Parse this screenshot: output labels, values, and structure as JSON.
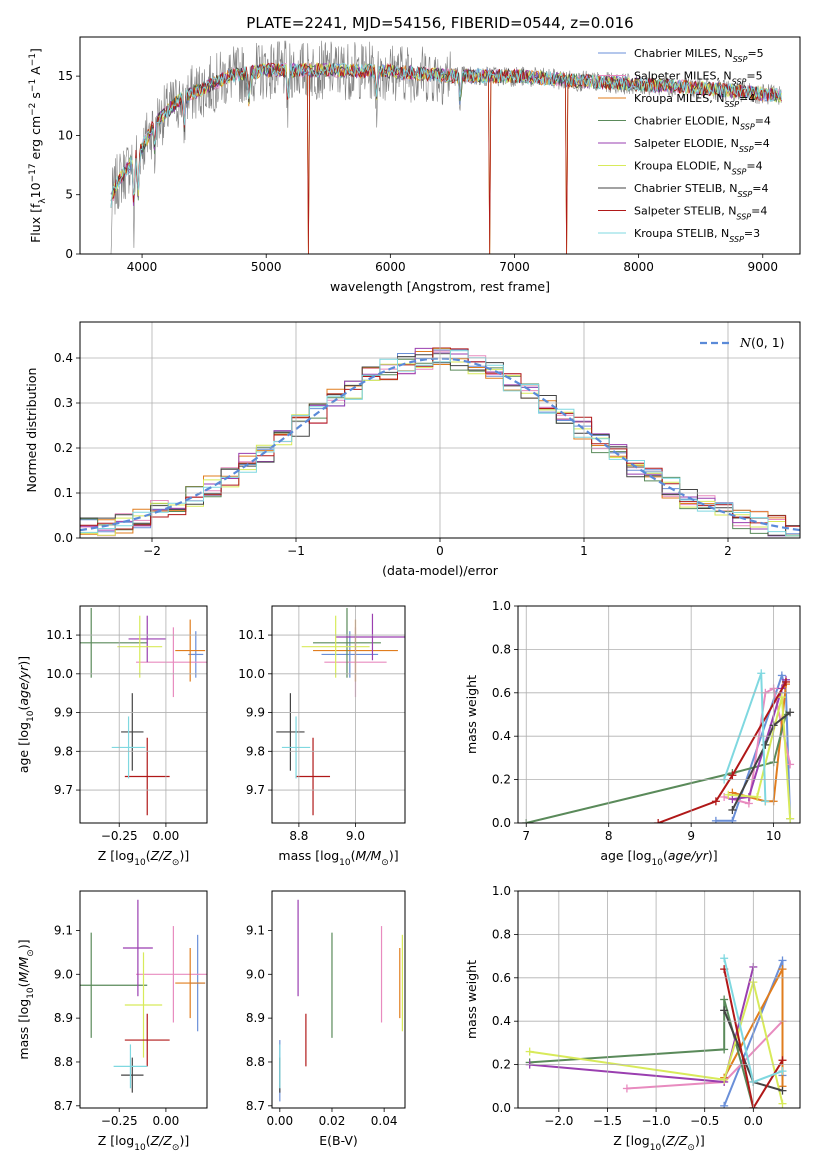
{
  "title": "PLATE=2241, MJD=54156, FIBERID=0544, z=0.016",
  "colors": [
    "#6a8fd8",
    "#e88bbf",
    "#e07d1e",
    "#5a8a5a",
    "#9a3fb0",
    "#d8ea5a",
    "#444444",
    "#b01818",
    "#7fd8e0"
  ],
  "legend": [
    "Chabrier MILES, N_SSP=5",
    "Salpeter MILES, N_SSP=5",
    "Kroupa MILES, N_SSP=4",
    "Chabrier ELODIE, N_SSP=4",
    "Salpeter ELODIE, N_SSP=4",
    "Kroupa ELODIE, N_SSP=4",
    "Chabrier STELIB, N_SSP=4",
    "Salpeter STELIB, N_SSP=4",
    "Kroupa STELIB, N_SSP=3"
  ],
  "chart_data": [
    {
      "id": "spectrum",
      "type": "line",
      "xlabel": "wavelength [Angstrom, rest frame]",
      "ylabel": "Flux [f_λ10^-17 erg cm^-2 s^-1 A^-1]",
      "xlim": [
        3500,
        9300
      ],
      "ylim": [
        0,
        18.3
      ],
      "xticks": [
        4000,
        5000,
        6000,
        7000,
        8000,
        9000
      ],
      "yticks": [
        0,
        5,
        10,
        15
      ],
      "continuum": [
        [
          3750,
          4.5
        ],
        [
          3800,
          6
        ],
        [
          3900,
          7.5
        ],
        [
          4000,
          9
        ],
        [
          4100,
          11
        ],
        [
          4300,
          13
        ],
        [
          4500,
          14
        ],
        [
          4700,
          15
        ],
        [
          5000,
          15.5
        ],
        [
          5500,
          15.5
        ],
        [
          6000,
          15.4
        ],
        [
          6500,
          15
        ],
        [
          7000,
          15
        ],
        [
          7500,
          14.6
        ],
        [
          8000,
          14.3
        ],
        [
          8500,
          14
        ],
        [
          9000,
          13.5
        ],
        [
          9300,
          13.2
        ]
      ]
    },
    {
      "id": "residuals",
      "type": "step",
      "xlabel": "(data-model)/error",
      "ylabel": "Normed distribution",
      "xlim": [
        -2.5,
        2.5
      ],
      "ylim": [
        0,
        0.48
      ],
      "xticks": [
        -2,
        -1,
        0,
        1,
        2
      ],
      "yticks": [
        0.0,
        0.1,
        0.2,
        0.3,
        0.4
      ],
      "legend": "N(0,1)",
      "gaussian": {
        "mu": 0,
        "sigma": 1
      }
    },
    {
      "id": "age_vs_Z",
      "type": "errorbar",
      "xlabel": "Z [log10(Z/Z⊙)]",
      "ylabel": "age  [log10(age/yr)]",
      "xlim": [
        -0.46,
        0.22
      ],
      "ylim": [
        9.615,
        10.175
      ],
      "xticks": [
        -0.25,
        0.0
      ],
      "yticks": [
        9.7,
        9.8,
        9.9,
        10.0,
        10.1
      ],
      "points": [
        {
          "x": 0.16,
          "y": 10.05,
          "xe": 0.04,
          "ye": 0.06
        },
        {
          "x": 0.04,
          "y": 10.03,
          "xe": 0.2,
          "ye": 0.09
        },
        {
          "x": 0.13,
          "y": 10.06,
          "xe": 0.08,
          "ye": 0.08
        },
        {
          "x": -0.4,
          "y": 10.08,
          "xe": 0.3,
          "ye": 0.09
        },
        {
          "x": -0.1,
          "y": 10.09,
          "xe": 0.1,
          "ye": 0.06
        },
        {
          "x": -0.14,
          "y": 10.07,
          "xe": 0.12,
          "ye": 0.08
        },
        {
          "x": -0.18,
          "y": 9.85,
          "xe": 0.06,
          "ye": 0.1
        },
        {
          "x": -0.1,
          "y": 9.735,
          "xe": 0.12,
          "ye": 0.1
        },
        {
          "x": -0.2,
          "y": 9.81,
          "xe": 0.09,
          "ye": 0.08
        }
      ]
    },
    {
      "id": "age_vs_mass",
      "type": "errorbar",
      "xlabel": "mass [log10(M/M⊙)]",
      "ylabel": "",
      "xlim": [
        8.705,
        9.175
      ],
      "ylim": [
        9.615,
        10.175
      ],
      "xticks": [
        8.8,
        9.0
      ],
      "yticks": [
        9.7,
        9.8,
        9.9,
        10.0,
        10.1
      ],
      "points": [
        {
          "x": 8.98,
          "y": 10.05,
          "xe": 0.1,
          "ye": 0.06
        },
        {
          "x": 9.0,
          "y": 10.03,
          "xe": 0.11,
          "ye": 0.09
        },
        {
          "x": 9.0,
          "y": 10.06,
          "xe": 0.15,
          "ye": 0.08
        },
        {
          "x": 8.97,
          "y": 10.08,
          "xe": 0.12,
          "ye": 0.09
        },
        {
          "x": 9.06,
          "y": 10.095,
          "xe": 0.13,
          "ye": 0.06
        },
        {
          "x": 8.93,
          "y": 10.07,
          "xe": 0.12,
          "ye": 0.08
        },
        {
          "x": 8.77,
          "y": 9.85,
          "xe": 0.05,
          "ye": 0.1
        },
        {
          "x": 8.85,
          "y": 9.735,
          "xe": 0.06,
          "ye": 0.1
        },
        {
          "x": 8.79,
          "y": 9.81,
          "xe": 0.05,
          "ye": 0.08
        }
      ]
    },
    {
      "id": "massweight_vs_age",
      "type": "line",
      "xlabel": "age  [log10(age/yr)]",
      "ylabel": "mass weight",
      "xlim": [
        6.9,
        10.32
      ],
      "ylim": [
        0,
        1.0
      ],
      "xticks": [
        7,
        8,
        9,
        10
      ],
      "yticks": [
        0.0,
        0.2,
        0.4,
        0.6,
        0.8,
        1.0
      ],
      "series": [
        {
          "x": [
            9.3,
            9.5,
            10.1,
            10.15,
            10.2
          ],
          "y": [
            0.01,
            0.01,
            0.68,
            0.6,
            0.02
          ]
        },
        {
          "x": [
            9.4,
            9.7,
            9.9,
            10.0,
            10.2
          ],
          "y": [
            0.12,
            0.09,
            0.6,
            0.62,
            0.27
          ]
        },
        {
          "x": [
            9.5,
            9.9,
            10.0,
            10.15
          ],
          "y": [
            0.14,
            0.1,
            0.1,
            0.64
          ]
        },
        {
          "x": [
            7.0,
            9.5,
            10.0,
            10.15
          ],
          "y": [
            0.0,
            0.23,
            0.28,
            0.5
          ]
        },
        {
          "x": [
            9.5,
            9.7,
            10.1,
            10.15
          ],
          "y": [
            0.11,
            0.12,
            0.62,
            0.66
          ]
        },
        {
          "x": [
            9.45,
            9.8,
            10.1,
            10.2
          ],
          "y": [
            0.13,
            0.12,
            0.58,
            0.02
          ]
        },
        {
          "x": [
            9.5,
            9.9,
            10.0,
            10.2
          ],
          "y": [
            0.06,
            0.36,
            0.45,
            0.51
          ]
        },
        {
          "x": [
            8.6,
            9.3,
            9.5,
            10.15
          ],
          "y": [
            0.0,
            0.1,
            0.22,
            0.65
          ]
        },
        {
          "x": [
            9.4,
            9.85,
            9.9
          ],
          "y": [
            0.2,
            0.69,
            0.1
          ]
        }
      ]
    },
    {
      "id": "mass_vs_Z",
      "type": "errorbar",
      "xlabel": "Z [log10(Z/Z⊙)]",
      "ylabel": "mass [log10(M/M⊙)]",
      "xlim": [
        -0.46,
        0.22
      ],
      "ylim": [
        8.695,
        9.19
      ],
      "xticks": [
        -0.25,
        0.0
      ],
      "yticks": [
        8.7,
        8.8,
        8.9,
        9.0,
        9.1
      ],
      "points": [
        {
          "x": 0.17,
          "y": 8.98,
          "xe": 0.04,
          "ye": 0.11
        },
        {
          "x": 0.04,
          "y": 9.0,
          "xe": 0.2,
          "ye": 0.11
        },
        {
          "x": 0.13,
          "y": 8.98,
          "xe": 0.08,
          "ye": 0.08
        },
        {
          "x": -0.4,
          "y": 8.975,
          "xe": 0.3,
          "ye": 0.12
        },
        {
          "x": -0.15,
          "y": 9.06,
          "xe": 0.08,
          "ye": 0.11
        },
        {
          "x": -0.12,
          "y": 8.93,
          "xe": 0.1,
          "ye": 0.12
        },
        {
          "x": -0.18,
          "y": 8.77,
          "xe": 0.06,
          "ye": 0.04
        },
        {
          "x": -0.1,
          "y": 8.85,
          "xe": 0.12,
          "ye": 0.06
        },
        {
          "x": -0.19,
          "y": 8.79,
          "xe": 0.09,
          "ye": 0.05
        }
      ]
    },
    {
      "id": "mass_vs_EBV",
      "type": "errorbar",
      "xlabel": "E(B-V)",
      "ylabel": "",
      "xlim": [
        -0.003,
        0.048
      ],
      "ylim": [
        8.695,
        9.19
      ],
      "xticks": [
        0.0,
        0.02,
        0.04
      ],
      "yticks": [
        8.7,
        8.8,
        8.9,
        9.0,
        9.1
      ],
      "points": [
        {
          "x": 0.0,
          "y": 8.78,
          "xe": 0,
          "ye": 0.07
        },
        {
          "x": 0.039,
          "y": 9.0,
          "xe": 0,
          "ye": 0.11
        },
        {
          "x": 0.046,
          "y": 8.98,
          "xe": 0,
          "ye": 0.08
        },
        {
          "x": 0.02,
          "y": 8.975,
          "xe": 0,
          "ye": 0.12
        },
        {
          "x": 0.007,
          "y": 9.06,
          "xe": 0,
          "ye": 0.11
        },
        {
          "x": 0.047,
          "y": 8.98,
          "xe": 0,
          "ye": 0.11
        },
        {
          "x": 0.0,
          "y": 8.77,
          "xe": 0,
          "ye": 0.04
        },
        {
          "x": 0.01,
          "y": 8.85,
          "xe": 0,
          "ye": 0.06
        },
        {
          "x": 0.0,
          "y": 8.79,
          "xe": 0,
          "ye": 0.05
        }
      ]
    },
    {
      "id": "massweight_vs_Z",
      "type": "line",
      "xlabel": "Z [log10(Z/Z⊙)]",
      "ylabel": "mass weight",
      "xlim": [
        -2.42,
        0.48
      ],
      "ylim": [
        0,
        1.0
      ],
      "xticks": [
        -2.0,
        -1.5,
        -1.0,
        -0.5,
        0.0
      ],
      "yticks": [
        0.0,
        0.2,
        0.4,
        0.6,
        0.8,
        1.0
      ],
      "series": [
        {
          "x": [
            -0.3,
            0.3,
            0.3
          ],
          "y": [
            0.01,
            0.68,
            0.15
          ]
        },
        {
          "x": [
            -1.3,
            -0.3,
            0.3
          ],
          "y": [
            0.09,
            0.12,
            0.4
          ]
        },
        {
          "x": [
            -0.3,
            0.3,
            0.3
          ],
          "y": [
            0.14,
            0.64,
            0.1
          ]
        },
        {
          "x": [
            -2.3,
            -0.3,
            -0.3,
            0.0
          ],
          "y": [
            0.21,
            0.27,
            0.5,
            0.0
          ]
        },
        {
          "x": [
            -2.3,
            -0.3,
            0.0
          ],
          "y": [
            0.2,
            0.12,
            0.65
          ]
        },
        {
          "x": [
            -2.3,
            -0.3,
            0.0,
            0.3
          ],
          "y": [
            0.26,
            0.13,
            0.58,
            0.02
          ]
        },
        {
          "x": [
            -0.3,
            0.0,
            0.3
          ],
          "y": [
            0.45,
            0.12,
            0.08
          ]
        },
        {
          "x": [
            -0.3,
            0.0,
            0.3
          ],
          "y": [
            0.64,
            0.0,
            0.22
          ]
        },
        {
          "x": [
            -0.3,
            0.0,
            0.3
          ],
          "y": [
            0.69,
            0.12,
            0.17
          ]
        }
      ]
    }
  ]
}
